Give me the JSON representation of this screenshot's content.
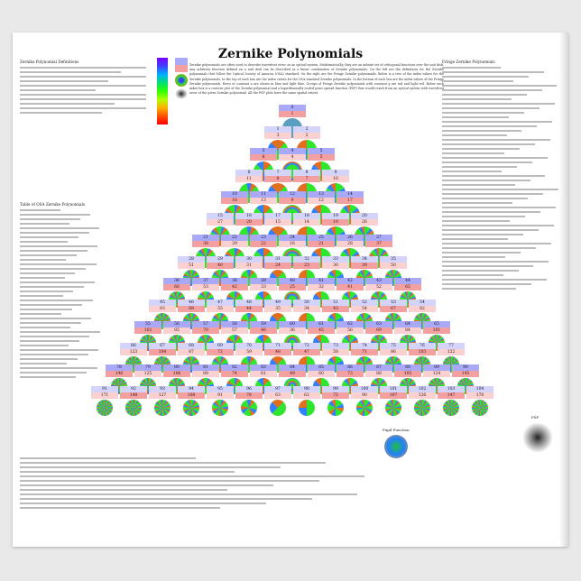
{
  "title": "Zernike Polynomials",
  "intro": "Zernike polynomials are often used to describe wavefront error on an optical system. Mathematically, they are an infinite set of orthogonal functions over the unit disk. Any arbitrary function defined on a unit disk can be described as a linear combination of Zernike polynomials. On the left are the definitions for the Zernike polynomials that follow the Optical Society of America (OSA) standard. On the right are the Fringe Zernike polynomials. Below is a tree of the index values for the Zernike polynomials. In the top of each box are the index values for the OSA standard Zernike polynomials. In the bottom of each box are the index values of the Fringe Zernike polynomials. Rows of constant n are shown in blue and light blue. Groups of Fringe Zernike polynomials with constant g are red and light red. Below each index box is a contour plot of the Zernike polynomial and a logarithmically scaled point spread function (PSF) that would result from an optical system with wavefront error of the given Zernike polynomial. All the PSF plots have the same spatial extent.",
  "sections": {
    "left_top": "Zernike Polynomial Definitions",
    "left_table": "Table of OSA Zernike Polynomials",
    "right_top": "Fringe Zernike Polynomials",
    "pupil_label": "Pupil Function",
    "psf_label": "PSF"
  },
  "pyramid": {
    "max_order": 13
  },
  "colors": {
    "blue": "#a9a9f8",
    "red": "#f5a0a0",
    "disk_green": "#2ee62e",
    "disk_blue": "#5a9fc0",
    "disk_orange": "#e07020"
  }
}
